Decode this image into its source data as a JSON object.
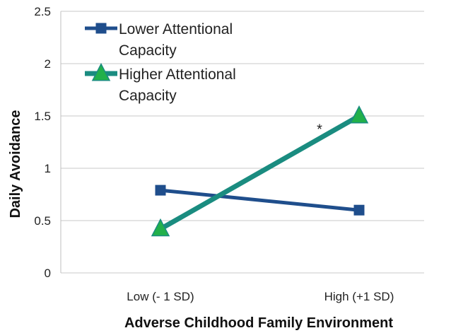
{
  "chart_data": {
    "type": "line",
    "title": "",
    "xlabel": "Adverse Childhood Family Environment",
    "ylabel": "Daily Avoidance",
    "categories": [
      "Low (- 1 SD)",
      "High (+1 SD)"
    ],
    "ylim": [
      0,
      2.5
    ],
    "yticks": [
      "0",
      "0.5",
      "1",
      "1.5",
      "2",
      "2.5"
    ],
    "grid": true,
    "legend_position": "top-left",
    "series": [
      {
        "name_lines": [
          "Lower Attentional",
          "Capacity"
        ],
        "values": [
          0.79,
          0.6
        ],
        "color": "#1f4e8c",
        "marker": "square"
      },
      {
        "name_lines": [
          "Higher Attentional",
          "Capacity"
        ],
        "values": [
          0.42,
          1.5
        ],
        "color": "#1a8c80",
        "marker_fill": "#22b04a",
        "marker": "triangle"
      }
    ],
    "annotations": [
      {
        "text": "*",
        "x_index": 1,
        "y": 1.41
      }
    ]
  }
}
